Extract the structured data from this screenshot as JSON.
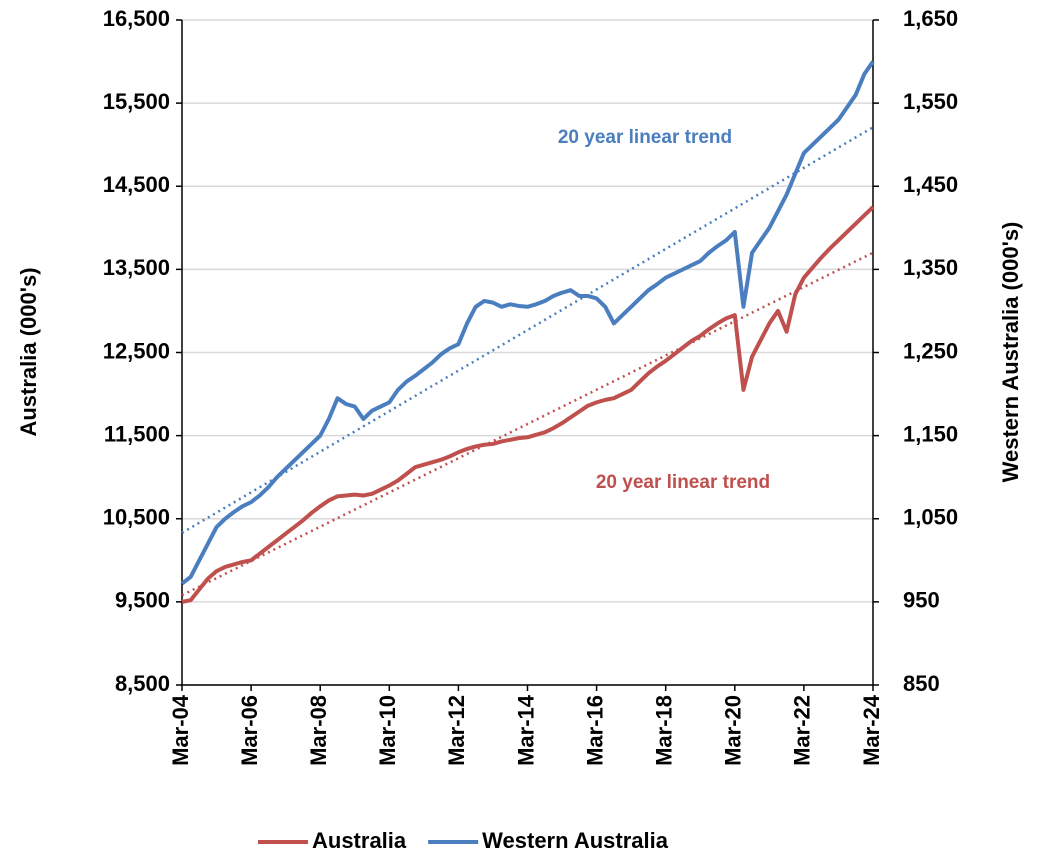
{
  "chart_data": {
    "type": "line",
    "y_label": "Australia (000's)",
    "y2_label": "Western Australia (000's)",
    "x": [
      "Mar-04",
      "Jun-04",
      "Sep-04",
      "Dec-04",
      "Mar-05",
      "Jun-05",
      "Sep-05",
      "Dec-05",
      "Mar-06",
      "Jun-06",
      "Sep-06",
      "Dec-06",
      "Mar-07",
      "Jun-07",
      "Sep-07",
      "Dec-07",
      "Mar-08",
      "Jun-08",
      "Sep-08",
      "Dec-08",
      "Mar-09",
      "Jun-09",
      "Sep-09",
      "Dec-09",
      "Mar-10",
      "Jun-10",
      "Sep-10",
      "Dec-10",
      "Mar-11",
      "Jun-11",
      "Sep-11",
      "Dec-11",
      "Mar-12",
      "Jun-12",
      "Sep-12",
      "Dec-12",
      "Mar-13",
      "Jun-13",
      "Sep-13",
      "Dec-13",
      "Mar-14",
      "Jun-14",
      "Sep-14",
      "Dec-14",
      "Mar-15",
      "Jun-15",
      "Sep-15",
      "Dec-15",
      "Mar-16",
      "Jun-16",
      "Sep-16",
      "Dec-16",
      "Mar-17",
      "Jun-17",
      "Sep-17",
      "Dec-17",
      "Mar-18",
      "Jun-18",
      "Sep-18",
      "Dec-18",
      "Mar-19",
      "Jun-19",
      "Sep-19",
      "Dec-19",
      "Mar-20",
      "Jun-20",
      "Sep-20",
      "Dec-20",
      "Mar-21",
      "Jun-21",
      "Sep-21",
      "Dec-21",
      "Mar-22",
      "Jun-22",
      "Sep-22",
      "Dec-22",
      "Mar-23",
      "Jun-23",
      "Sep-23",
      "Dec-23",
      "Mar-24"
    ],
    "xticks": [
      "Mar-04",
      "Mar-06",
      "Mar-08",
      "Mar-10",
      "Mar-12",
      "Mar-14",
      "Mar-16",
      "Mar-18",
      "Mar-20",
      "Mar-22",
      "Mar-24"
    ],
    "ylim": [
      8500,
      16500
    ],
    "yticks": [
      {
        "value": 8500,
        "label": "8,500"
      },
      {
        "value": 9500,
        "label": "9,500"
      },
      {
        "value": 10500,
        "label": "10,500"
      },
      {
        "value": 11500,
        "label": "11,500"
      },
      {
        "value": 12500,
        "label": "12,500"
      },
      {
        "value": 13500,
        "label": "13,500"
      },
      {
        "value": 14500,
        "label": "14,500"
      },
      {
        "value": 15500,
        "label": "15,500"
      },
      {
        "value": 16500,
        "label": "16,500"
      }
    ],
    "y2lim": [
      850,
      1650
    ],
    "y2ticks": [
      850,
      950,
      {
        "value": 1050,
        "label": "1,050"
      },
      {
        "value": 1150,
        "label": "1,150"
      },
      {
        "value": 1250,
        "label": "1,250"
      },
      {
        "value": 1350,
        "label": "1,350"
      },
      {
        "value": 1450,
        "label": "1,450"
      },
      {
        "value": 1550,
        "label": "1,550"
      },
      {
        "value": 1650,
        "label": "1,650"
      }
    ],
    "grid": true,
    "legend": "bottom",
    "series": [
      {
        "name": "Australia",
        "color": "#c0504d",
        "axis": "y",
        "values": [
          9500,
          9520,
          9650,
          9780,
          9870,
          9920,
          9950,
          9980,
          10000,
          10080,
          10160,
          10240,
          10320,
          10400,
          10480,
          10570,
          10650,
          10720,
          10770,
          10780,
          10790,
          10780,
          10800,
          10850,
          10900,
          10960,
          11040,
          11120,
          11150,
          11180,
          11210,
          11250,
          11300,
          11340,
          11370,
          11390,
          11400,
          11430,
          11450,
          11470,
          11480,
          11510,
          11540,
          11590,
          11650,
          11720,
          11790,
          11860,
          11900,
          11930,
          11950,
          12000,
          12050,
          12150,
          12250,
          12330,
          12400,
          12480,
          12560,
          12640,
          12700,
          12780,
          12850,
          12910,
          12950,
          12050,
          12450,
          12650,
          12850,
          13000,
          12750,
          13200,
          13400,
          13520,
          13640,
          13750,
          13850,
          13950,
          14050,
          14150,
          14250
        ]
      },
      {
        "name": "Western Australia",
        "color": "#4a7ebf",
        "axis": "y2",
        "values": [
          972,
          980,
          1000,
          1020,
          1040,
          1050,
          1058,
          1065,
          1070,
          1078,
          1088,
          1100,
          1110,
          1120,
          1130,
          1140,
          1150,
          1170,
          1195,
          1188,
          1185,
          1170,
          1180,
          1185,
          1190,
          1205,
          1215,
          1222,
          1230,
          1238,
          1248,
          1255,
          1260,
          1285,
          1305,
          1312,
          1310,
          1305,
          1308,
          1306,
          1305,
          1308,
          1312,
          1318,
          1322,
          1325,
          1318,
          1318,
          1315,
          1305,
          1285,
          1295,
          1305,
          1315,
          1325,
          1332,
          1340,
          1345,
          1350,
          1355,
          1360,
          1370,
          1378,
          1385,
          1395,
          1305,
          1370,
          1385,
          1400,
          1420,
          1440,
          1465,
          1490,
          1500,
          1510,
          1520,
          1530,
          1545,
          1560,
          1585,
          1600
        ]
      }
    ],
    "trends": [
      {
        "label": "20 year linear trend",
        "color": "#4a7ebf",
        "axis": "y2",
        "x": [
          "Mar-04",
          "Mar-24"
        ],
        "values": [
          1033,
          1521
        ]
      },
      {
        "label": "20 year linear trend",
        "color": "#c0504d",
        "axis": "y",
        "x": [
          "Mar-04",
          "Mar-24"
        ],
        "values": [
          9580,
          13700
        ]
      }
    ]
  }
}
